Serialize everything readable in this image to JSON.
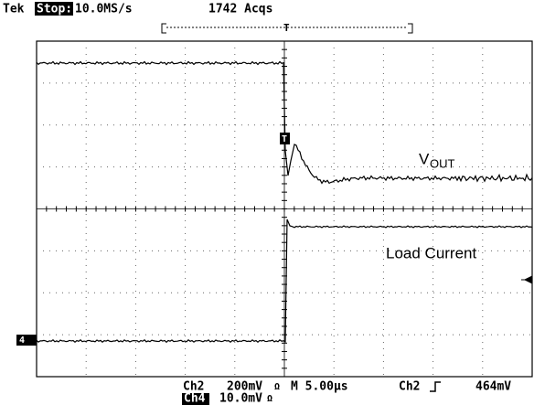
{
  "header": {
    "brand": "Tek",
    "state": "Stop:",
    "sample_rate": "10.0MS/s",
    "acquisitions": "1742 Acqs"
  },
  "labels": {
    "vout_main": "V",
    "vout_sub": "OUT",
    "load_current": "Load Current"
  },
  "markers": {
    "trigger": "T",
    "ch4": "4"
  },
  "status": {
    "row1": {
      "channel": "Ch2",
      "scale": "200mV",
      "coupling": "Ω",
      "timebase": "M 5.00µs",
      "trigger_source": "Ch2",
      "trigger_level": "464mV"
    },
    "row2": {
      "channel": "Ch4",
      "scale": "10.0mV",
      "coupling": "Ω"
    }
  }
}
